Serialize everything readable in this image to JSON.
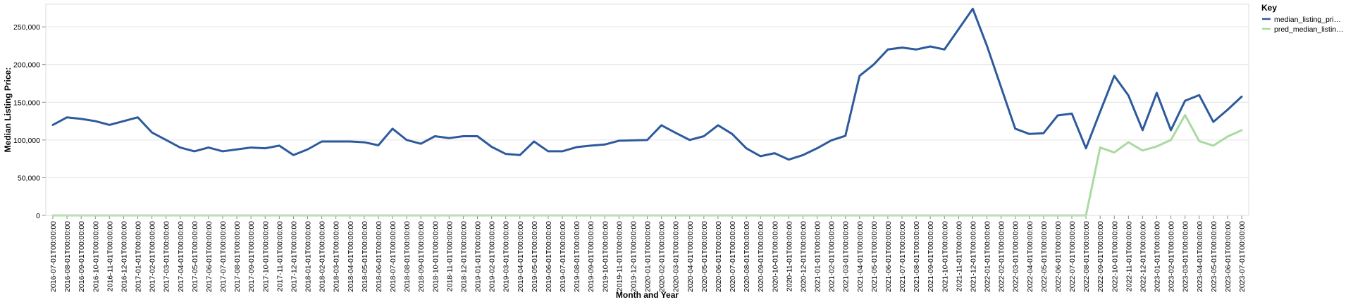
{
  "chart_data": {
    "type": "line",
    "title": "",
    "xlabel": "Month and Year",
    "ylabel": "Median Listing Price:",
    "ylim": [
      0,
      280000
    ],
    "y_ticks": [
      0,
      50000,
      100000,
      150000,
      200000,
      250000
    ],
    "y_tick_labels": [
      "0",
      "50,000",
      "100,000",
      "150,000",
      "200,000",
      "250,000"
    ],
    "grid": true,
    "legend": {
      "title": "Key",
      "placement": "top-right"
    },
    "colors": {
      "median": "#2d5a9c",
      "pred": "#a8dba0"
    },
    "x": [
      "2016-07-01T00:00:00",
      "2016-08-01T00:00:00",
      "2016-09-01T00:00:00",
      "2016-10-01T00:00:00",
      "2016-11-01T00:00:00",
      "2016-12-01T00:00:00",
      "2017-01-01T00:00:00",
      "2017-02-01T00:00:00",
      "2017-03-01T00:00:00",
      "2017-04-01T00:00:00",
      "2017-05-01T00:00:00",
      "2017-06-01T00:00:00",
      "2017-07-01T00:00:00",
      "2017-08-01T00:00:00",
      "2017-09-01T00:00:00",
      "2017-10-01T00:00:00",
      "2017-11-01T00:00:00",
      "2017-12-01T00:00:00",
      "2018-01-01T00:00:00",
      "2018-02-01T00:00:00",
      "2018-03-01T00:00:00",
      "2018-04-01T00:00:00",
      "2018-05-01T00:00:00",
      "2018-06-01T00:00:00",
      "2018-07-01T00:00:00",
      "2018-08-01T00:00:00",
      "2018-09-01T00:00:00",
      "2018-10-01T00:00:00",
      "2018-11-01T00:00:00",
      "2018-12-01T00:00:00",
      "2019-01-01T00:00:00",
      "2019-02-01T00:00:00",
      "2019-03-01T00:00:00",
      "2019-04-01T00:00:00",
      "2019-05-01T00:00:00",
      "2019-06-01T00:00:00",
      "2019-07-01T00:00:00",
      "2019-08-01T00:00:00",
      "2019-09-01T00:00:00",
      "2019-10-01T00:00:00",
      "2019-11-01T00:00:00",
      "2019-12-01T00:00:00",
      "2020-01-01T00:00:00",
      "2020-02-01T00:00:00",
      "2020-03-01T00:00:00",
      "2020-04-01T00:00:00",
      "2020-05-01T00:00:00",
      "2020-06-01T00:00:00",
      "2020-07-01T00:00:00",
      "2020-08-01T00:00:00",
      "2020-09-01T00:00:00",
      "2020-10-01T00:00:00",
      "2020-11-01T00:00:00",
      "2020-12-01T00:00:00",
      "2021-01-01T00:00:00",
      "2021-02-01T00:00:00",
      "2021-03-01T00:00:00",
      "2021-04-01T00:00:00",
      "2021-05-01T00:00:00",
      "2021-06-01T00:00:00",
      "2021-07-01T00:00:00",
      "2021-08-01T00:00:00",
      "2021-09-01T00:00:00",
      "2021-10-01T00:00:00",
      "2021-11-01T00:00:00",
      "2021-12-01T00:00:00",
      "2022-01-01T00:00:00",
      "2022-02-01T00:00:00",
      "2022-03-01T00:00:00",
      "2022-04-01T00:00:00",
      "2022-05-01T00:00:00",
      "2022-06-01T00:00:00",
      "2022-07-01T00:00:00",
      "2022-08-01T00:00:00",
      "2022-09-01T00:00:00",
      "2022-10-01T00:00:00",
      "2022-11-01T00:00:00",
      "2022-12-01T00:00:00",
      "2023-01-01T00:00:00",
      "2023-02-01T00:00:00",
      "2023-03-01T00:00:00",
      "2023-04-01T00:00:00",
      "2023-05-01T00:00:00",
      "2023-06-01T00:00:00",
      "2023-07-01T00:00:00"
    ],
    "series": [
      {
        "name": "median_listing_pri…",
        "color": "#2d5a9c",
        "values": [
          120000,
          130000,
          128000,
          125000,
          120000,
          125000,
          130000,
          110000,
          100000,
          90000,
          85000,
          90000,
          85000,
          87500,
          90000,
          89000,
          92500,
          80000,
          87500,
          98000,
          98000,
          98000,
          97000,
          93000,
          115000,
          100000,
          95000,
          105000,
          102500,
          105000,
          105000,
          91000,
          81500,
          80000,
          98000,
          85000,
          85000,
          90500,
          92500,
          94000,
          99000,
          99500,
          100000,
          119500,
          109500,
          100000,
          105000,
          119500,
          108000,
          89000,
          78500,
          82500,
          74000,
          80000,
          89000,
          99500,
          105500,
          185000,
          200000,
          220000,
          222500,
          220000,
          224000,
          220000,
          247000,
          274000,
          225000,
          170000,
          115000,
          108000,
          109000,
          132500,
          135000,
          89000,
          137500,
          185000,
          159000,
          113000,
          162500,
          113000,
          152000,
          159500,
          124000,
          140000,
          157500
        ]
      },
      {
        "name": "pred_median_listin…",
        "color": "#a8dba0",
        "values": [
          0,
          0,
          0,
          0,
          0,
          0,
          0,
          0,
          0,
          0,
          0,
          0,
          0,
          0,
          0,
          0,
          0,
          0,
          0,
          0,
          0,
          0,
          0,
          0,
          0,
          0,
          0,
          0,
          0,
          0,
          0,
          0,
          0,
          0,
          0,
          0,
          0,
          0,
          0,
          0,
          0,
          0,
          0,
          0,
          0,
          0,
          0,
          0,
          0,
          0,
          0,
          0,
          0,
          0,
          0,
          0,
          0,
          0,
          0,
          0,
          0,
          0,
          0,
          0,
          0,
          0,
          0,
          0,
          0,
          0,
          0,
          0,
          0,
          0,
          90000,
          83500,
          97000,
          86000,
          91500,
          100000,
          133000,
          98500,
          92500,
          104500,
          113000
        ]
      }
    ]
  }
}
